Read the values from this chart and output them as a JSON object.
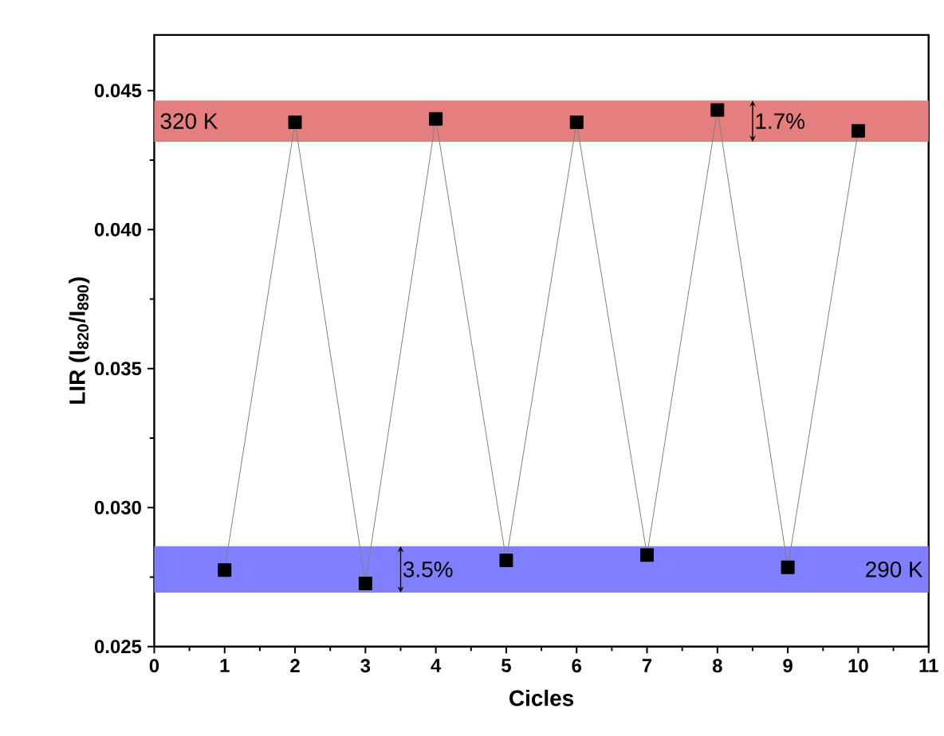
{
  "chart_data": {
    "type": "line",
    "xlabel": "Cicles",
    "ylabel": "LIR (I$_{820}$/I$_{890}$)",
    "x": [
      1,
      2,
      3,
      4,
      5,
      6,
      7,
      8,
      9,
      10
    ],
    "series": [
      {
        "color": "#000000",
        "values": [
          0.02775,
          0.04386,
          0.02727,
          0.04398,
          0.0281,
          0.04386,
          0.02829,
          0.0443,
          0.02785,
          0.04355
        ]
      }
    ],
    "marker": "square",
    "line_style": "solid",
    "grid": false,
    "xlim": [
      0,
      11
    ],
    "xticks": [
      0,
      1,
      2,
      3,
      4,
      5,
      6,
      7,
      8,
      9,
      10,
      11
    ],
    "ylim": [
      0.025,
      0.047
    ],
    "yticks": [
      0.025,
      {
        "value": 0.03,
        "label": "0.030"
      },
      0.035,
      {
        "value": 0.04,
        "label": "0.040"
      },
      0.045
    ],
    "bands": [
      {
        "axis": "y",
        "from": 0.04316,
        "to": 0.04464,
        "label": "320 K",
        "color": "#e57f7f"
      },
      {
        "axis": "y",
        "from": 0.02694,
        "to": 0.02861,
        "label": "290 K",
        "color": "#7f7fff"
      }
    ],
    "annotations": [
      "1.7%",
      "3.5%"
    ]
  }
}
